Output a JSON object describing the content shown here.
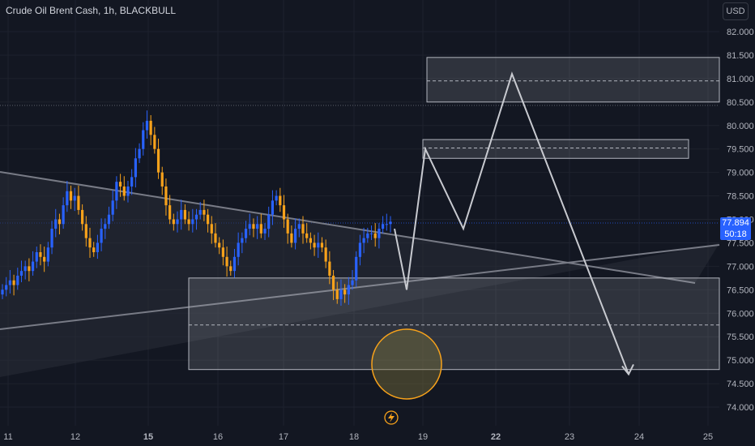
{
  "header": {
    "title": "Crude Oil Brent Cash, 1h, BLACKBULL",
    "currency": "USD"
  },
  "price_label": {
    "price": "77.894",
    "countdown": "50:18"
  },
  "colors": {
    "up": "#2962ff",
    "down": "#f7a21b",
    "background": "#131722",
    "zone": "#b2b5be",
    "circle": "#f7a21b"
  },
  "icons": {
    "replay": "lightning-icon"
  },
  "chart_data": {
    "type": "candlestick",
    "title": "Crude Oil Brent Cash, 1h, BLACKBULL",
    "ylim": [
      73.8,
      82.4
    ],
    "y_ticks": [
      "82.000",
      "81.500",
      "81.000",
      "80.500",
      "80.000",
      "79.500",
      "79.000",
      "78.500",
      "78.000",
      "77.500",
      "77.000",
      "76.500",
      "76.000",
      "75.500",
      "75.000",
      "74.500",
      "74.000"
    ],
    "y_tick_values": [
      82,
      81.5,
      81,
      80.5,
      80,
      79.5,
      79,
      78.5,
      78,
      77.5,
      77,
      76.5,
      76,
      75.5,
      75,
      74.5,
      74
    ],
    "x_ticks": [
      {
        "label": "11",
        "bold": false
      },
      {
        "label": "12",
        "bold": false
      },
      {
        "label": "15",
        "bold": true
      },
      {
        "label": "16",
        "bold": false
      },
      {
        "label": "17",
        "bold": false
      },
      {
        "label": "18",
        "bold": false
      },
      {
        "label": "19",
        "bold": false
      },
      {
        "label": "22",
        "bold": true
      },
      {
        "label": "23",
        "bold": false
      },
      {
        "label": "24",
        "bold": false
      },
      {
        "label": "25",
        "bold": false
      }
    ],
    "close_path": [
      76.5,
      76.6,
      76.7,
      76.6,
      76.8,
      76.9,
      77.0,
      76.9,
      77.1,
      77.3,
      77.2,
      77.1,
      77.4,
      77.8,
      78.0,
      77.9,
      78.3,
      78.6,
      78.4,
      78.5,
      78.2,
      77.9,
      77.6,
      77.4,
      77.3,
      77.5,
      77.8,
      77.9,
      78.1,
      78.4,
      78.8,
      78.7,
      78.5,
      78.7,
      78.9,
      79.3,
      79.5,
      79.9,
      80.1,
      79.8,
      79.5,
      79.0,
      78.7,
      78.3,
      78.0,
      77.9,
      78.0,
      78.2,
      78.0,
      77.9,
      78.0,
      78.1,
      78.2,
      78.1,
      77.9,
      77.7,
      77.5,
      77.4,
      77.2,
      77.0,
      76.9,
      77.2,
      77.5,
      77.6,
      77.8,
      77.9,
      77.8,
      77.9,
      77.7,
      77.8,
      78.1,
      78.4,
      78.5,
      78.3,
      78.0,
      77.7,
      77.5,
      77.8,
      77.9,
      77.7,
      77.6,
      77.5,
      77.4,
      77.5,
      77.4,
      77.1,
      76.8,
      76.5,
      76.3,
      76.5,
      76.4,
      76.6,
      76.7,
      77.2,
      77.5,
      77.6,
      77.7,
      77.7,
      77.6,
      77.8,
      77.9,
      77.9,
      77.95
    ],
    "zones": [
      {
        "name": "upper-resistance",
        "y_top": 81.45,
        "y_bottom": 80.5,
        "mid": 80.95
      },
      {
        "name": "mid-resistance",
        "y_top": 79.7,
        "y_bottom": 79.3,
        "mid": 79.52
      },
      {
        "name": "support",
        "y_top": 76.75,
        "y_bottom": 74.8,
        "mid": 75.75
      }
    ],
    "projection": [
      {
        "date": "18",
        "y": 77.8
      },
      {
        "date": "18.7",
        "y": 76.5
      },
      {
        "date": "19",
        "y": 79.5
      },
      {
        "date": "19.6",
        "y": 77.8
      },
      {
        "date": "22.2",
        "y": 81.1
      },
      {
        "date": "23.9",
        "y": 74.7
      }
    ]
  }
}
